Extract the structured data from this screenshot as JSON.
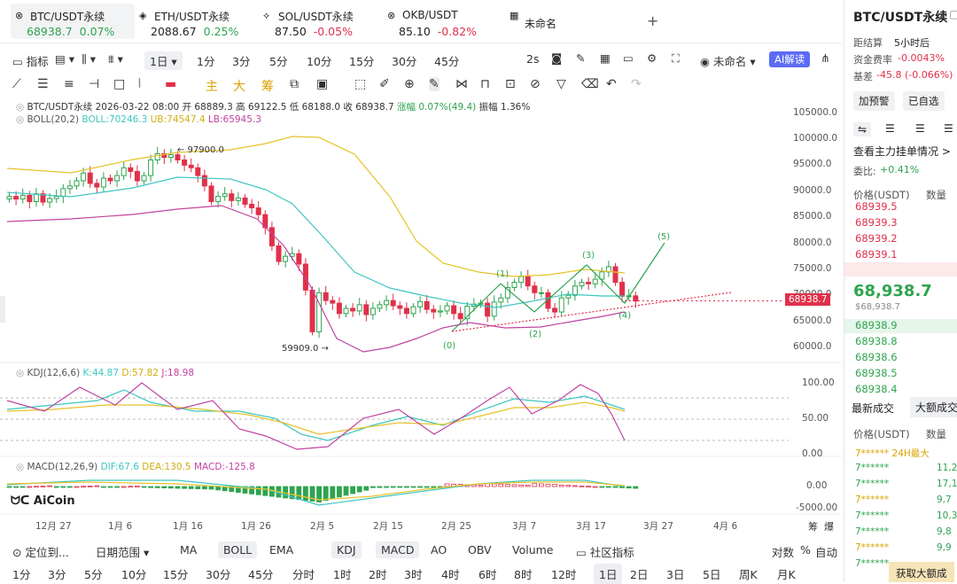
{
  "tabs": [
    {
      "name": "BTC/USDT永续",
      "price": "68938.7",
      "change": "0.07%",
      "dir": "up",
      "active": true,
      "icon": "⊗"
    },
    {
      "name": "ETH/USDT永续",
      "price": "2088.67",
      "change": "0.25%",
      "dir": "up",
      "active": false,
      "icon": "◈"
    },
    {
      "name": "SOL/USDT永续",
      "price": "87.50",
      "change": "-0.05%",
      "dir": "dn",
      "active": false,
      "icon": "⟡"
    },
    {
      "name": "OKB/USDT",
      "price": "85.10",
      "change": "-0.82%",
      "dir": "dn",
      "active": false,
      "icon": "⊗"
    },
    {
      "name": "未命名",
      "price": "",
      "change": "",
      "dir": "up",
      "active": false,
      "icon": "▦"
    }
  ],
  "add_tab": "+",
  "toolbar": {
    "indicator": "指标",
    "interval_selected": "1日",
    "intervals": [
      "1分",
      "3分",
      "5分",
      "10分",
      "15分",
      "30分",
      "45分"
    ],
    "right_interval": "2s",
    "unnamed": "未命名",
    "ai": "AI解读"
  },
  "draw_tools_text": [
    "主",
    "大",
    "筹"
  ],
  "legend": {
    "symbol": "BTC/USDT永续",
    "date": "2026-03-22 08:00",
    "open": "开 68889.3",
    "high": "高 69122.5",
    "low": "低 68188.0",
    "close": "收 68938.7",
    "change": "涨幅 0.07%(49.4)",
    "amp": "振幅 1.36%",
    "boll": "BOLL(20,2)",
    "boll_mid": "BOLL:70246.3",
    "boll_ub": "UB:74547.4",
    "boll_lb": "LB:65945.3",
    "kdj": "KDJ(12,6,6)",
    "kdj_k": "K:44.87",
    "kdj_d": "D:57.82",
    "kdj_j": "J:18.98",
    "macd": "MACD(12,26,9)",
    "macd_dif": "DIF:67.6",
    "macd_dea": "DEA:130.5",
    "macd_val": "MACD:-125.8"
  },
  "price_axis": [
    "105000.0",
    "100000.0",
    "95000.0",
    "90000.0",
    "85000.0",
    "80000.0",
    "75000.0",
    "70000.0",
    "65000.0",
    "60000.0"
  ],
  "kdj_axis": [
    "100.00",
    "50.00",
    "0.00"
  ],
  "macd_axis": [
    "0.00",
    "-5000.00"
  ],
  "current_price_tag": "68938.7",
  "annotations": {
    "high": "97900.0",
    "low": "59909.0",
    "waves": [
      "(0)",
      "(1)",
      "(2)",
      "(3)",
      "(4)",
      "(5)"
    ]
  },
  "x_axis": [
    "12月 27",
    "1月 6",
    "1月 16",
    "1月 26",
    "2月 5",
    "2月 15",
    "2月 25",
    "3月 7",
    "3月 17",
    "3月 27",
    "4月 6"
  ],
  "axis_corner": [
    "筹",
    "爆"
  ],
  "logo": "AiCoin",
  "bottom_bar1": {
    "locate": "定位到...",
    "date_range": "日期范围",
    "items": [
      "MA",
      "BOLL",
      "EMA",
      "KDJ",
      "MACD",
      "AO",
      "OBV",
      "Volume"
    ],
    "selected": [
      "BOLL",
      "KDJ",
      "MACD"
    ],
    "community": "社区指标",
    "right": [
      "对数",
      "%",
      "自动"
    ]
  },
  "bottom_bar2": [
    "1分",
    "3分",
    "5分",
    "10分",
    "15分",
    "30分",
    "45分",
    "分时",
    "1时",
    "2时",
    "3时",
    "4时",
    "6时",
    "8时",
    "12时",
    "1日",
    "2日",
    "3日",
    "5日",
    "周K",
    "月K"
  ],
  "bottom_bar2_selected": "1日",
  "right_panel": {
    "title": "BTC/USDT永续",
    "settle_label": "距结算",
    "settle_value": "5小时后",
    "funding_label": "资金费率",
    "funding_value": "-0.0043%",
    "premium_label": "基差",
    "premium_value": "-45.8 (-0.066%)",
    "btn_alert": "加预警",
    "btn_fav": "已自选",
    "depth_title": "查看主力挂单情况 >",
    "ratio_label": "委比:",
    "ratio_value": "+0.41%",
    "col_price": "价格(USDT)",
    "col_qty": "数量",
    "asks": [
      "68939.5",
      "68939.3",
      "68939.2",
      "68939.1",
      "68939.0"
    ],
    "last_price": "68,938.7",
    "last_sub": "$68,938.7",
    "bids": [
      "68938.9",
      "68938.8",
      "68938.6",
      "68938.5",
      "68938.4"
    ],
    "trades_title": "最新成交",
    "big_trades": "大额成交",
    "trades_col_price": "价格(USDT)",
    "trades_col_qty": "数量",
    "trade_rows": [
      "7****** 24H最大",
      "7******",
      "7******",
      "7******",
      "7******",
      "7******",
      "7******",
      "7******"
    ],
    "trade_qty": [
      "",
      "11,2",
      "17,1",
      "9,7",
      "10,3",
      "9,8",
      "9,9",
      ""
    ],
    "get_btn": "获取大额成"
  },
  "colors": {
    "up": "#2ea44f",
    "down": "#e0304a",
    "boll_mid": "#3ec6c0",
    "boll_ub": "#e6c22a",
    "boll_lb": "#c044a0",
    "accent": "#5b6cf5",
    "trend": "#e0304a"
  }
}
